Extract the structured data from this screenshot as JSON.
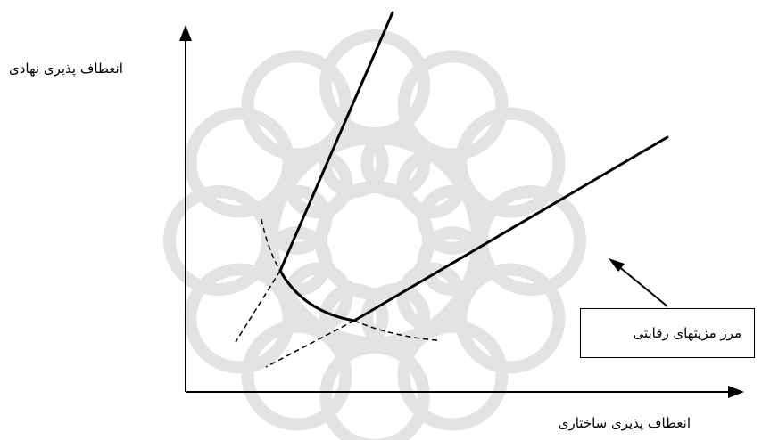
{
  "axes": {
    "y_label": "انعطاف پذیری نهادی",
    "x_label": "انعطاف پذیری ساختاری"
  },
  "annotation": {
    "label": "مرز مزیتهای رقابتی"
  },
  "colors": {
    "ink": "#000000",
    "watermark": "#e2e2e2"
  },
  "watermark": {
    "type": "geometric-star-logo"
  }
}
